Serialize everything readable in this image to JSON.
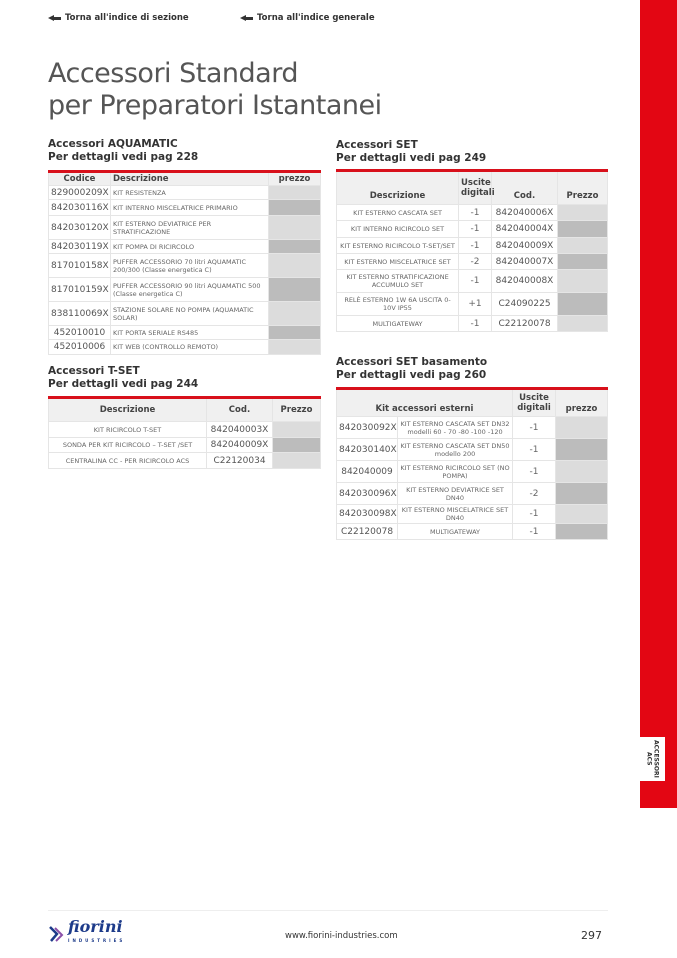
{
  "nav": {
    "section": "Torna all'indice di sezione",
    "general": "Torna all'indice generale"
  },
  "title": [
    "Accessori Standard",
    "per Preparatori Istantanei"
  ],
  "aquamatic": {
    "heading": "Accessori AQUAMATIC",
    "ref": "Per dettagli vedi pag 228",
    "headers": [
      "Codice",
      "Descrizione",
      "prezzo"
    ],
    "rows": [
      [
        "829000209X",
        "KIT RESISTENZA"
      ],
      [
        "842030116X",
        "KIT INTERNO MISCELATRICE PRIMARIO"
      ],
      [
        "842030120X",
        "KIT ESTERNO DEVIATRICE PER STRATIFICAZIONE"
      ],
      [
        "842030119X",
        "KIT POMPA DI RICIRCOLO"
      ],
      [
        "817010158X",
        "PUFFER ACCESSORIO 70 litri AQUAMATIC 200/300 (Classe energetica C)"
      ],
      [
        "817010159X",
        "PUFFER ACCESSORIO 90 litri AQUAMATIC 500 (Classe energetica C)"
      ],
      [
        "838110069X",
        "STAZIONE SOLARE NO POMPA (AQUAMATIC SOLAR)"
      ],
      [
        "452010010",
        "KIT PORTA SERIALE RS485"
      ],
      [
        "452010006",
        "KIT WEB (CONTROLLO REMOTO)"
      ]
    ]
  },
  "tset": {
    "heading": "Accessori T-SET",
    "ref": "Per dettagli vedi pag 244",
    "headers": [
      "Descrizione",
      "Cod.",
      "Prezzo"
    ],
    "rows": [
      [
        "KIT RICIRCOLO T-SET",
        "842040003X"
      ],
      [
        "SONDA PER KIT RICIRCOLO – T-SET /SET",
        "842040009X"
      ],
      [
        "CENTRALINA CC - PER RICIRCOLO ACS",
        "C22120034"
      ]
    ]
  },
  "set": {
    "heading": "Accessori SET",
    "ref": "Per dettagli vedi pag 249",
    "headers": [
      "Descrizione",
      "Uscite digitali",
      "Cod.",
      "Prezzo"
    ],
    "rows": [
      [
        "KIT ESTERNO CASCATA SET",
        "-1",
        "842040006X"
      ],
      [
        "KIT INTERNO RICIRCOLO SET",
        "-1",
        "842040004X"
      ],
      [
        "KIT ESTERNO RICIRCOLO T-SET/SET",
        "-1",
        "842040009X"
      ],
      [
        "KIT ESTERNO MISCELATRICE SET",
        "-2",
        "842040007X"
      ],
      [
        "KIT ESTERNO STRATIFICAZIONE ACCUMULO SET",
        "-1",
        "842040008X"
      ],
      [
        "RELÈ ESTERNO 1W 6A USCITA 0-10V IP55",
        "+1",
        "C24090225"
      ],
      [
        "MULTIGATEWAY",
        "-1",
        "C22120078"
      ]
    ]
  },
  "basamento": {
    "heading": "Accessori SET basamento",
    "ref": "Per dettagli vedi pag 260",
    "headers": [
      "Kit accessori esterni",
      "Uscite digitali",
      "prezzo"
    ],
    "rows": [
      [
        "842030092X",
        "KIT ESTERNO CASCATA SET DN32 modelli 60 - 70 -80 -100 -120",
        "-1"
      ],
      [
        "842030140X",
        "KIT ESTERNO CASCATA SET DN50 modello 200",
        "-1"
      ],
      [
        "842040009",
        "KIT ESTERNO RICIRCOLO SET (NO POMPA)",
        "-1"
      ],
      [
        "842030096X",
        "KIT ESTERNO DEVIATRICE SET DN40",
        "-2"
      ],
      [
        "842030098X",
        "KIT ESTERNO MISCELATRICE SET DN40",
        "-1"
      ],
      [
        "C22120078",
        "MULTIGATEWAY",
        "-1"
      ]
    ]
  },
  "side_label": "ACCESSORI ACS",
  "footer": {
    "logo": "fiorini",
    "logo_sub": "INDUSTRIES",
    "url": "www.fiorini-industries.com",
    "page": "297"
  },
  "colors": {
    "accent": "#e30613",
    "price_light": "#dcdcdc",
    "price_dark": "#bcbcbc"
  }
}
